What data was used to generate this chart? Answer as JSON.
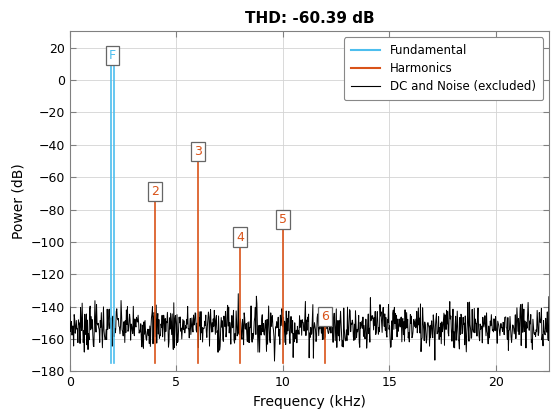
{
  "title": "THD: -60.39 dB",
  "xlabel": "Frequency (kHz)",
  "ylabel": "Power (dB)",
  "xlim": [
    0,
    22.5
  ],
  "ylim": [
    -180,
    30
  ],
  "yticks": [
    20,
    0,
    -20,
    -40,
    -60,
    -80,
    -100,
    -120,
    -140,
    -160,
    -180
  ],
  "xticks": [
    0,
    5,
    10,
    15,
    20
  ],
  "fundamental_freq": 2.0,
  "fundamental_power": 10.0,
  "harmonics": [
    {
      "n": 2,
      "freq": 4.0,
      "power": -75
    },
    {
      "n": 3,
      "freq": 6.0,
      "power": -50
    },
    {
      "n": 4,
      "freq": 8.0,
      "power": -103
    },
    {
      "n": 5,
      "freq": 10.0,
      "power": -92
    },
    {
      "n": 6,
      "freq": 12.0,
      "power": -152
    }
  ],
  "fundamental_color": "#4DBEEE",
  "harmonic_color": "#D95319",
  "noise_color": "#000000",
  "bg_color": "#FFFFFF",
  "legend_labels": [
    "Fundamental",
    "Harmonics",
    "DC and Noise (excluded)"
  ],
  "noise_floor_mean": -152,
  "noise_floor_std": 7,
  "n_noise_points": 900
}
